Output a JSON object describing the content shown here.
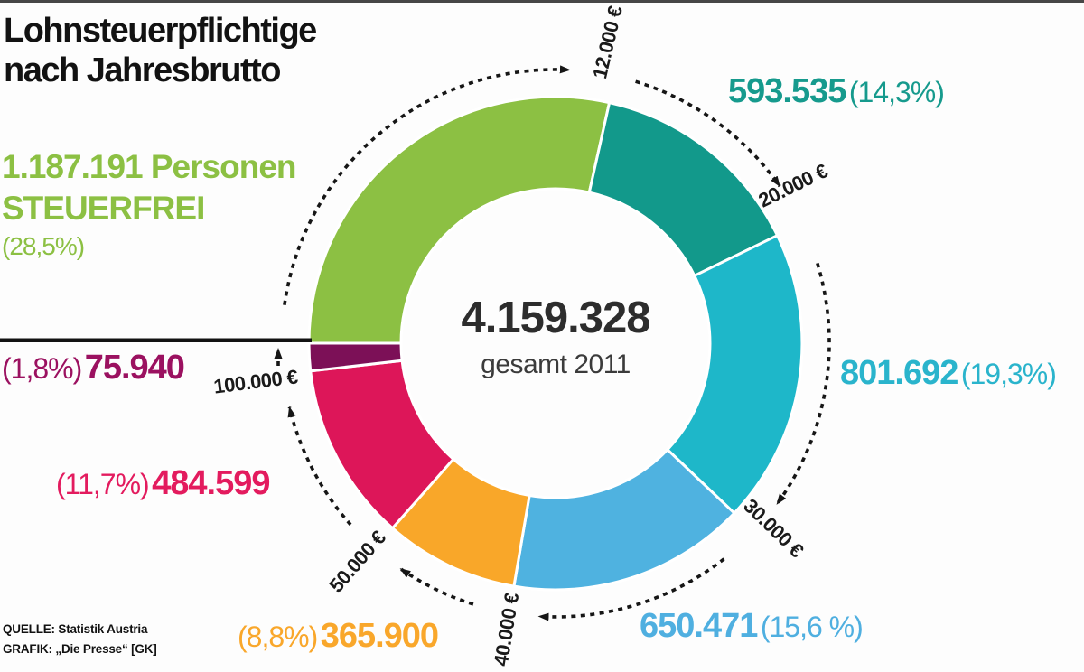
{
  "page": {
    "title_line1": "Lohnsteuerpflichtige",
    "title_line2": "nach Jahresbrutto"
  },
  "center": {
    "total": "4.159.328",
    "subtitle": "gesamt 2011"
  },
  "source": {
    "quelle": "QUELLE: Statistik Austria",
    "grafik": "GRAFIK: „Die Presse“ [GK]"
  },
  "chart_data": {
    "type": "pie",
    "subtype": "donut",
    "title": "Lohnsteuerpflichtige nach Jahresbrutto",
    "total": 4159328,
    "total_label": "4.159.328",
    "center_sublabel": "gesamt 2011",
    "year": 2011,
    "start_bearing_deg": 270,
    "direction": "clockwise",
    "segments": [
      {
        "id": "steuerfrei",
        "label_line1": "1.187.191 Personen",
        "label_line2": "STEUERFREI",
        "value_label": "1.187.191",
        "pct_label": "(28,5%)",
        "value": 1187191,
        "pct": 28.5,
        "color": "#8cc043",
        "text_color": "#8cc043"
      },
      {
        "id": "bis-20000",
        "value_label": "593.535",
        "pct_label": "(14,3%)",
        "value": 593535,
        "pct": 14.3,
        "color": "#12998b",
        "text_color": "#169a8d"
      },
      {
        "id": "bis-30000",
        "value_label": "801.692",
        "pct_label": "(19,3%)",
        "value": 801692,
        "pct": 19.3,
        "color": "#1eb7c9",
        "text_color": "#2ab4cc"
      },
      {
        "id": "bis-40000",
        "value_label": "650.471",
        "pct_label": "(15,6 %)",
        "value": 650471,
        "pct": 15.6,
        "color": "#4fb2e0",
        "text_color": "#4fafe0"
      },
      {
        "id": "bis-50000",
        "value_label": "365.900",
        "pct_label": "(8,8%)",
        "value": 365900,
        "pct": 8.8,
        "color": "#f9a729",
        "text_color": "#f9a72b"
      },
      {
        "id": "bis-100000",
        "value_label": "484.599",
        "pct_label": "(11,7%)",
        "value": 484599,
        "pct": 11.7,
        "color": "#dd1659",
        "text_color": "#e31b5e"
      },
      {
        "id": "ueber-100000",
        "value_label": "75.940",
        "pct_label": "(1,8%)",
        "value": 75940,
        "pct": 1.8,
        "color": "#7c1057",
        "text_color": "#9b1160"
      }
    ],
    "boundaries": [
      {
        "label": "12.000 €"
      },
      {
        "label": "20.000 €"
      },
      {
        "label": "30.000 €"
      },
      {
        "label": "40.000 €"
      },
      {
        "label": "50.000 €"
      },
      {
        "label": "100.000 €"
      }
    ],
    "legend_position": "around",
    "grid": false
  }
}
